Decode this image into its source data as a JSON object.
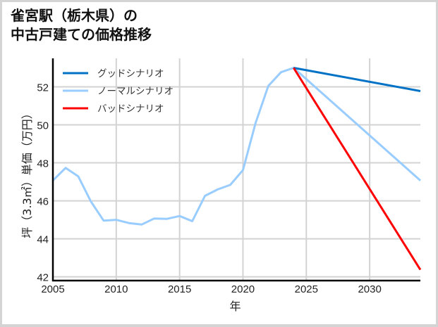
{
  "title": {
    "line1": "雀宮駅（栃木県）の",
    "line2": "中古戸建ての価格推移"
  },
  "chart_data": {
    "type": "line",
    "title": "雀宮駅（栃木県）の中古戸建ての価格推移",
    "xlabel": "年",
    "ylabel": "坪（3.3㎡）単価（万円）",
    "xlim": [
      2005,
      2034
    ],
    "ylim": [
      41.8,
      53.5
    ],
    "x_ticks": [
      2005,
      2010,
      2015,
      2020,
      2025,
      2030
    ],
    "y_ticks": [
      42,
      44,
      46,
      48,
      50,
      52
    ],
    "grid": true,
    "legend_position": "upper left",
    "series": [
      {
        "name": "グッドシナリオ",
        "color": "#0072c6",
        "x": [
          2024,
          2034
        ],
        "values": [
          53.0,
          51.78
        ]
      },
      {
        "name": "ノーマルシナリオ",
        "color": "#99ccff",
        "x": [
          2005,
          2006,
          2007,
          2008,
          2009,
          2010,
          2011,
          2012,
          2013,
          2014,
          2015,
          2016,
          2017,
          2018,
          2019,
          2020,
          2021,
          2022,
          2023,
          2024,
          2034
        ],
        "values": [
          47.07,
          47.73,
          47.29,
          45.96,
          44.96,
          45.0,
          44.83,
          44.75,
          45.07,
          45.05,
          45.2,
          44.93,
          46.26,
          46.6,
          46.84,
          47.62,
          50.1,
          52.05,
          52.77,
          53.0,
          47.07
        ]
      },
      {
        "name": "バッドシナリオ",
        "color": "#ff0000",
        "x": [
          2024,
          2034
        ],
        "values": [
          53.0,
          42.37
        ]
      }
    ]
  }
}
